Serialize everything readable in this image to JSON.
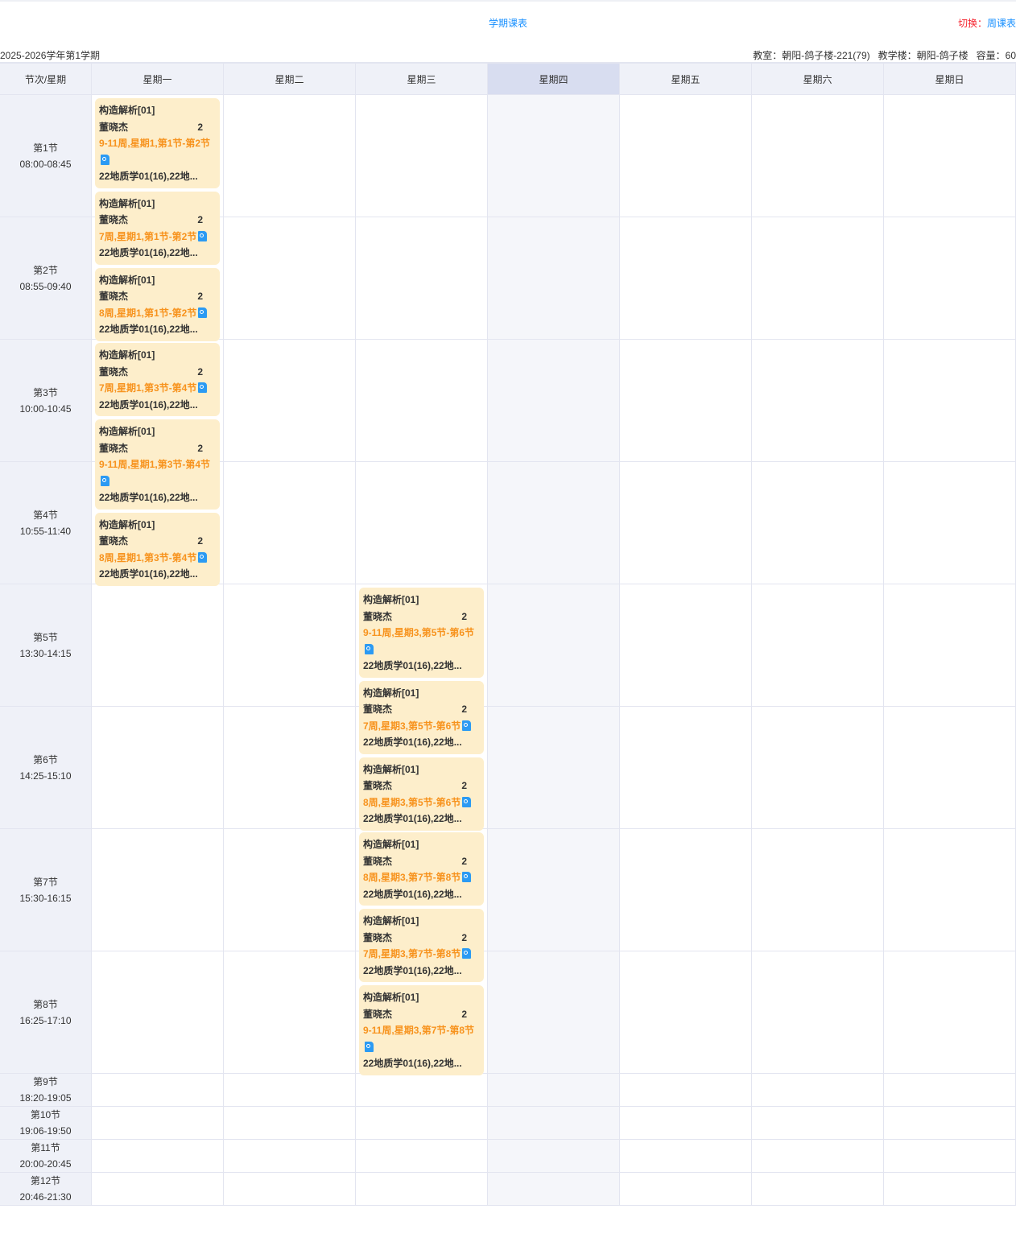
{
  "header": {
    "title": "学期课表",
    "switch_label": "切换：",
    "switch_link": "周课表",
    "term": "2025-2026学年第1学期",
    "room_info": "教室：朝阳-鸽子楼-221(79)   教学楼：朝阳-鸽子楼   容量：60"
  },
  "columns": [
    "节次/星期",
    "星期一",
    "星期二",
    "星期三",
    "星期四",
    "星期五",
    "星期六",
    "星期日"
  ],
  "highlight_day_index": 4,
  "periods": [
    {
      "name": "第1节",
      "time": "08:00-08:45"
    },
    {
      "name": "第2节",
      "time": "08:55-09:40"
    },
    {
      "name": "第3节",
      "time": "10:00-10:45"
    },
    {
      "name": "第4节",
      "time": "10:55-11:40"
    },
    {
      "name": "第5节",
      "time": "13:30-14:15"
    },
    {
      "name": "第6节",
      "time": "14:25-15:10"
    },
    {
      "name": "第7节",
      "time": "15:30-16:15"
    },
    {
      "name": "第8节",
      "time": "16:25-17:10"
    },
    {
      "name": "第9节",
      "time": "18:20-19:05"
    },
    {
      "name": "第10节",
      "time": "19:06-19:50"
    },
    {
      "name": "第11节",
      "time": "20:00-20:45"
    },
    {
      "name": "第12节",
      "time": "20:46-21:30"
    }
  ],
  "blocks": [
    {
      "day": 1,
      "start_period": 1,
      "cards": [
        {
          "course": "构造解析[01]",
          "teacher": "董晓杰",
          "credit": "2",
          "schedule": "9-11周,星期1,第1节-第2节",
          "classes": "22地质学01(16),22地...",
          "icon": "file-search-icon"
        },
        {
          "course": "构造解析[01]",
          "teacher": "董晓杰",
          "credit": "2",
          "schedule": "7周,星期1,第1节-第2节",
          "classes": "22地质学01(16),22地...",
          "icon": "file-search-icon"
        },
        {
          "course": "构造解析[01]",
          "teacher": "董晓杰",
          "credit": "2",
          "schedule": "8周,星期1,第1节-第2节",
          "classes": "22地质学01(16),22地...",
          "icon": "file-search-icon"
        }
      ]
    },
    {
      "day": 1,
      "start_period": 3,
      "cards": [
        {
          "course": "构造解析[01]",
          "teacher": "董晓杰",
          "credit": "2",
          "schedule": "7周,星期1,第3节-第4节",
          "classes": "22地质学01(16),22地...",
          "icon": "file-search-icon"
        },
        {
          "course": "构造解析[01]",
          "teacher": "董晓杰",
          "credit": "2",
          "schedule": "9-11周,星期1,第3节-第4节",
          "classes": "22地质学01(16),22地...",
          "icon": "file-search-icon"
        },
        {
          "course": "构造解析[01]",
          "teacher": "董晓杰",
          "credit": "2",
          "schedule": "8周,星期1,第3节-第4节",
          "classes": "22地质学01(16),22地...",
          "icon": "file-search-icon"
        }
      ]
    },
    {
      "day": 3,
      "start_period": 5,
      "cards": [
        {
          "course": "构造解析[01]",
          "teacher": "董晓杰",
          "credit": "2",
          "schedule": "9-11周,星期3,第5节-第6节",
          "classes": "22地质学01(16),22地...",
          "icon": "file-search-icon"
        },
        {
          "course": "构造解析[01]",
          "teacher": "董晓杰",
          "credit": "2",
          "schedule": "7周,星期3,第5节-第6节",
          "classes": "22地质学01(16),22地...",
          "icon": "file-search-icon"
        },
        {
          "course": "构造解析[01]",
          "teacher": "董晓杰",
          "credit": "2",
          "schedule": "8周,星期3,第5节-第6节",
          "classes": "22地质学01(16),22地...",
          "icon": "file-search-icon"
        }
      ]
    },
    {
      "day": 3,
      "start_period": 7,
      "cards": [
        {
          "course": "构造解析[01]",
          "teacher": "董晓杰",
          "credit": "2",
          "schedule": "8周,星期3,第7节-第8节",
          "classes": "22地质学01(16),22地...",
          "icon": "file-search-icon"
        },
        {
          "course": "构造解析[01]",
          "teacher": "董晓杰",
          "credit": "2",
          "schedule": "7周,星期3,第7节-第8节",
          "classes": "22地质学01(16),22地...",
          "icon": "file-search-icon"
        },
        {
          "course": "构造解析[01]",
          "teacher": "董晓杰",
          "credit": "2",
          "schedule": "9-11周,星期3,第7节-第8节",
          "classes": "22地质学01(16),22地...",
          "icon": "file-search-icon"
        }
      ]
    }
  ],
  "colors": {
    "accent": "#1890ff",
    "card_bg": "#fdeecb",
    "schedule_text": "#f7931e",
    "switch_label": "#f5222d",
    "icon": "#2b9af3"
  }
}
